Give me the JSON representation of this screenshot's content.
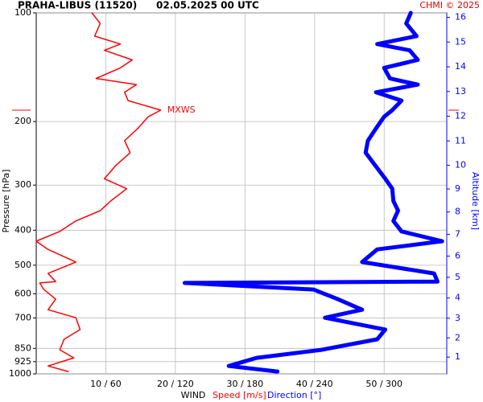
{
  "chart_data": {
    "type": "line",
    "station": "PRAHA-LIBUS (11520)",
    "date": "02.05.2025 00 UTC",
    "credit": "CHMI © 2025",
    "ylabel": "Pressure [hPa]",
    "y2label": "Altitude [km]",
    "xlabel": "WIND",
    "xlabel_speed": "Speed [m/s]",
    "xlabel_direction": "Direction [°]",
    "y_scale": "log",
    "ylim": [
      1000,
      100
    ],
    "yticks": [
      100,
      200,
      300,
      400,
      500,
      600,
      700,
      850,
      925,
      1000
    ],
    "y2lim": [
      0.11,
      16.18
    ],
    "y2ticks": [
      1,
      2,
      3,
      4,
      5,
      6,
      7,
      8,
      9,
      10,
      11,
      12,
      13,
      14,
      15,
      16
    ],
    "xlim": [
      0,
      59
    ],
    "x2lim": [
      0,
      354
    ],
    "xticks": [
      {
        "value": 10,
        "label": "10 / 60"
      },
      {
        "value": 20,
        "label": "20 / 120"
      },
      {
        "value": 30,
        "label": "30 / 180"
      },
      {
        "value": 40,
        "label": "40 / 240"
      },
      {
        "value": 50,
        "label": "50 / 300"
      }
    ],
    "grid": true,
    "y": [
      100,
      107,
      116,
      122,
      127,
      135,
      142,
      152,
      158,
      166,
      175,
      186,
      194,
      209,
      226,
      244,
      264,
      288,
      307,
      332,
      353,
      377,
      403,
      429,
      452,
      490,
      527,
      555,
      560,
      584,
      621,
      664,
      699,
      754,
      802,
      858,
      903,
      951,
      985
    ],
    "series": [
      {
        "name": "Speed",
        "color": "#ff0000",
        "axis": "x",
        "values": [
          8.0,
          9.2,
          8.4,
          12.1,
          9.8,
          13.8,
          12.1,
          8.6,
          14.4,
          12.7,
          13.2,
          17.9,
          16.1,
          14.6,
          12.7,
          13.5,
          11.5,
          9.8,
          13.0,
          10.7,
          9.2,
          5.7,
          3.4,
          0,
          1.7,
          5.7,
          1.7,
          2.8,
          0.5,
          1.1,
          2.8,
          1.7,
          5.7,
          6.3,
          4.0,
          3.4,
          5.4,
          1.7,
          4.6
        ]
      },
      {
        "name": "Direction",
        "color": "#0000ff",
        "axis": "x2",
        "values": [
          323,
          319,
          328,
          294,
          322,
          329,
          300,
          305,
          329,
          293,
          315,
          307,
          300,
          293,
          286,
          284,
          292,
          301,
          307,
          308,
          312,
          308,
          315,
          350,
          294,
          281,
          343,
          346,
          128,
          239,
          260,
          281,
          249,
          301,
          294,
          246,
          190,
          166,
          208
        ]
      }
    ],
    "max_wind": {
      "label": "MXWS",
      "speed": 17.9,
      "pressure": 186
    }
  }
}
